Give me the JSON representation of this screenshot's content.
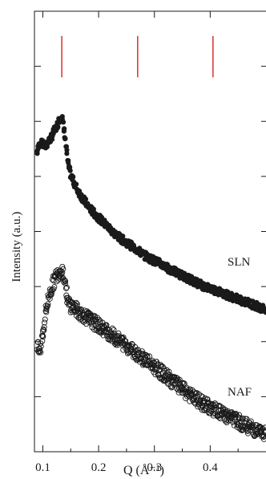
{
  "chart_data": {
    "type": "scatter",
    "title": "",
    "xlabel": "Q (Å⁻¹)",
    "ylabel": "Intensity (a.u.)",
    "xlim": [
      0.085,
      0.5
    ],
    "ylim": [
      0,
      8
    ],
    "x_ticks": [
      0.1,
      0.2,
      0.3,
      0.4
    ],
    "x_tick_labels": [
      "0.1",
      "0.2",
      "0.3",
      "0.4"
    ],
    "y_ticks": [
      1,
      2,
      3,
      4,
      5,
      6,
      7
    ],
    "y_tick_labels_shown": false,
    "grid": false,
    "reference_lines": {
      "color": "#d62020",
      "x": [
        0.134,
        0.27,
        0.405
      ],
      "y_range": [
        6.8,
        7.55
      ]
    },
    "series": [
      {
        "name": "SLN",
        "marker": "filled-circle",
        "color": "#1a1a1a",
        "x": [
          0.09,
          0.095,
          0.1,
          0.105,
          0.11,
          0.115,
          0.12,
          0.125,
          0.13,
          0.134,
          0.14,
          0.145,
          0.15,
          0.16,
          0.17,
          0.18,
          0.19,
          0.2,
          0.21,
          0.22,
          0.23,
          0.24,
          0.25,
          0.26,
          0.27,
          0.28,
          0.29,
          0.3,
          0.31,
          0.32,
          0.33,
          0.34,
          0.35,
          0.36,
          0.37,
          0.38,
          0.39,
          0.4,
          0.41,
          0.42,
          0.43,
          0.44,
          0.45,
          0.46,
          0.47,
          0.48,
          0.49,
          0.5
        ],
        "y": [
          5.45,
          5.62,
          5.58,
          5.55,
          5.63,
          5.7,
          5.82,
          5.9,
          6.05,
          6.12,
          5.7,
          5.25,
          5.02,
          4.8,
          4.62,
          4.48,
          4.35,
          4.25,
          4.15,
          4.05,
          3.95,
          3.87,
          3.8,
          3.73,
          3.66,
          3.58,
          3.52,
          3.47,
          3.42,
          3.36,
          3.3,
          3.25,
          3.2,
          3.15,
          3.1,
          3.05,
          3.0,
          2.97,
          2.93,
          2.89,
          2.85,
          2.81,
          2.77,
          2.73,
          2.7,
          2.66,
          2.62,
          2.58
        ]
      },
      {
        "name": "NAF",
        "marker": "open-circle",
        "color": "#1a1a1a",
        "x": [
          0.09,
          0.095,
          0.1,
          0.105,
          0.11,
          0.115,
          0.12,
          0.125,
          0.13,
          0.135,
          0.14,
          0.145,
          0.15,
          0.16,
          0.17,
          0.18,
          0.19,
          0.2,
          0.21,
          0.22,
          0.23,
          0.24,
          0.25,
          0.26,
          0.27,
          0.28,
          0.29,
          0.3,
          0.31,
          0.32,
          0.33,
          0.34,
          0.35,
          0.36,
          0.37,
          0.38,
          0.39,
          0.4,
          0.41,
          0.42,
          0.43,
          0.44,
          0.45,
          0.46,
          0.47,
          0.48,
          0.49,
          0.5
        ],
        "y": [
          1.88,
          1.82,
          2.15,
          2.52,
          2.78,
          2.95,
          3.1,
          3.2,
          3.28,
          3.3,
          3.1,
          2.7,
          2.66,
          2.58,
          2.5,
          2.43,
          2.36,
          2.29,
          2.22,
          2.15,
          2.07,
          2.0,
          1.93,
          1.85,
          1.78,
          1.7,
          1.62,
          1.54,
          1.46,
          1.38,
          1.3,
          1.22,
          1.14,
          1.06,
          0.98,
          0.92,
          0.86,
          0.8,
          0.75,
          0.7,
          0.65,
          0.6,
          0.55,
          0.5,
          0.45,
          0.4,
          0.35,
          0.3
        ]
      }
    ]
  }
}
